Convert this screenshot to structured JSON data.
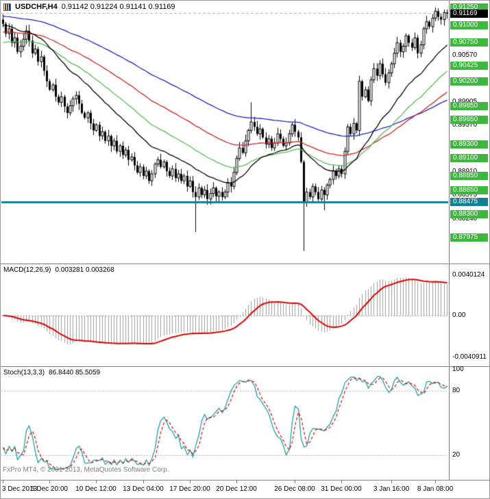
{
  "copyright": "FxPro MT4, © 2001-2013, MetaQuotes Software Corp.",
  "chart_data": [
    {
      "type": "candlestick",
      "symbol_period": "USDCHF,H4",
      "ohlc_line": "0.91142 0.91224 0.91141 0.91169",
      "price_top": 0.9134,
      "price_bottom": 0.8762,
      "first_open": 0.9108,
      "closes": [
        0.9102,
        0.9088,
        0.9095,
        0.9075,
        0.9082,
        0.9062,
        0.907,
        0.908,
        0.9092,
        0.9078,
        0.906,
        0.9066,
        0.9048,
        0.9055,
        0.9035,
        0.902,
        0.9008,
        0.9015,
        0.8998,
        0.899,
        0.8998,
        0.8984,
        0.8975,
        0.8985,
        0.8995,
        0.9,
        0.8988,
        0.8975,
        0.8968,
        0.8975,
        0.896,
        0.895,
        0.8958,
        0.8942,
        0.8948,
        0.8935,
        0.8942,
        0.8928,
        0.8935,
        0.892,
        0.8928,
        0.8915,
        0.8922,
        0.8908,
        0.8912,
        0.89,
        0.889,
        0.8898,
        0.8885,
        0.8892,
        0.8878,
        0.8888,
        0.8902,
        0.8908,
        0.8898,
        0.8905,
        0.8892,
        0.8885,
        0.8895,
        0.8882,
        0.8888,
        0.8878,
        0.8885,
        0.887,
        0.8878,
        0.8862,
        0.8855,
        0.8868,
        0.8858,
        0.8865,
        0.8852,
        0.886,
        0.8868,
        0.8856,
        0.8862,
        0.8855,
        0.8862,
        0.8875,
        0.887,
        0.889,
        0.891,
        0.8925,
        0.8918,
        0.8935,
        0.895,
        0.8962,
        0.8955,
        0.8945,
        0.8952,
        0.894,
        0.893,
        0.8938,
        0.8925,
        0.8932,
        0.8945,
        0.8938,
        0.8928,
        0.8932,
        0.8945,
        0.8958,
        0.8948,
        0.894,
        0.8905,
        0.8848,
        0.8862,
        0.8855,
        0.887,
        0.8862,
        0.8852,
        0.8865,
        0.8858,
        0.8872,
        0.888,
        0.8892,
        0.8885,
        0.8895,
        0.8888,
        0.892,
        0.8955,
        0.8945,
        0.896,
        0.895,
        0.902,
        0.8998,
        0.9008,
        0.8992,
        0.9022,
        0.9038,
        0.9028,
        0.9045,
        0.903,
        0.9018,
        0.9032,
        0.9045,
        0.906,
        0.9075,
        0.9062,
        0.907,
        0.9085,
        0.9075,
        0.9068,
        0.9082,
        0.906,
        0.9072,
        0.9095,
        0.9105,
        0.9098,
        0.911,
        0.912,
        0.9112,
        0.9108,
        0.9118,
        0.9117
      ],
      "wick_spikes": {
        "66": {
          "low": 0.8805
        },
        "85": {
          "high": 0.899
        },
        "103": {
          "low": 0.8778
        },
        "110": {
          "low": 0.8836
        }
      },
      "moving_averages": [
        {
          "name": "ma-slowest-blue",
          "color": "#2020c0",
          "period": 120,
          "seed": 0.9113
        },
        {
          "name": "ma-slow-red",
          "color": "#cc2222",
          "period": 75,
          "seed": 0.909
        },
        {
          "name": "ma-mid-green",
          "color": "#55bb55",
          "period": 45,
          "seed": 0.9074
        },
        {
          "name": "ma-fast-black",
          "color": "#000000",
          "period": 25,
          "seed": 0.91
        }
      ],
      "support_line": {
        "value": 0.88475,
        "label": "0.88475",
        "color": "#0e8194"
      },
      "current_price": {
        "value": 0.91169,
        "label": "0.91169",
        "badge_color": "#000000"
      },
      "badge_color": "#3cb83c",
      "axis_ticks": [
        {
          "label": "0.90570",
          "value": 0.9057
        },
        {
          "label": "0.89905",
          "value": 0.89905
        },
        {
          "label": "0.89570",
          "value": 0.8957
        },
        {
          "label": "0.88910",
          "value": 0.8891
        },
        {
          "label": "0.88575",
          "value": 0.88575
        },
        {
          "label": "0.88240",
          "value": 0.8824
        }
      ],
      "level_badges": [
        {
          "label": "0.91250",
          "value": 0.9125
        },
        {
          "label": "0.91000",
          "value": 0.91
        },
        {
          "label": "0.90750",
          "value": 0.9075
        },
        {
          "label": "0.90425",
          "value": 0.90425
        },
        {
          "label": "0.90200",
          "value": 0.902
        },
        {
          "label": "0.89850",
          "value": 0.8985
        },
        {
          "label": "0.89650",
          "value": 0.8965
        },
        {
          "label": "0.89300",
          "value": 0.893
        },
        {
          "label": "0.89100",
          "value": 0.891
        },
        {
          "label": "0.88850",
          "value": 0.8885
        },
        {
          "label": "0.88650",
          "value": 0.8865
        },
        {
          "label": "0.88300",
          "value": 0.883
        },
        {
          "label": "0.87975",
          "value": 0.87975
        }
      ],
      "time_labels": [
        {
          "text": "3 Dec 2013",
          "bar": 0
        },
        {
          "text": "5 Dec 20:00",
          "bar": 16
        },
        {
          "text": "10 Dec 12:00",
          "bar": 32
        },
        {
          "text": "13 Dec 04:00",
          "bar": 48
        },
        {
          "text": "17 Dec 20:00",
          "bar": 64
        },
        {
          "text": "20 Dec 12:00",
          "bar": 80
        },
        {
          "text": "26 Dec 08:00",
          "bar": 100
        },
        {
          "text": "31 Dec 00:00",
          "bar": 116
        },
        {
          "text": "3 Jan 16:00",
          "bar": 133
        },
        {
          "text": "8 Jan 08:00",
          "bar": 148
        }
      ]
    },
    {
      "type": "macd-histogram",
      "label": "MACD(12,26,9)",
      "values_text": "0.003281 0.003268",
      "params": {
        "fast": 12,
        "slow": 26,
        "signal": 9
      },
      "axis": {
        "top_label": "0.0040124",
        "top_value": 0.0040124,
        "zero_label": "0.00",
        "bottom_label": "-0.0040911",
        "bottom_value": -0.0040911,
        "scale_max": 0.005,
        "scale_min": -0.005
      },
      "histogram_color": "#9a9a9a",
      "signal_color": "#dd0000"
    },
    {
      "type": "stochastic",
      "label": "Stoch(13,3,3)",
      "values_text": "86.8440 85.5059",
      "params": {
        "k": 13,
        "slowing": 3,
        "d": 3
      },
      "range": [
        0,
        100
      ],
      "levels": [
        {
          "label": "100",
          "value": 100,
          "gridline": false
        },
        {
          "label": "80",
          "value": 80,
          "gridline": true
        },
        {
          "label": "20",
          "value": 20,
          "gridline": true
        }
      ],
      "k_color": "#20a0a0",
      "d_color": "#dd0000"
    }
  ]
}
